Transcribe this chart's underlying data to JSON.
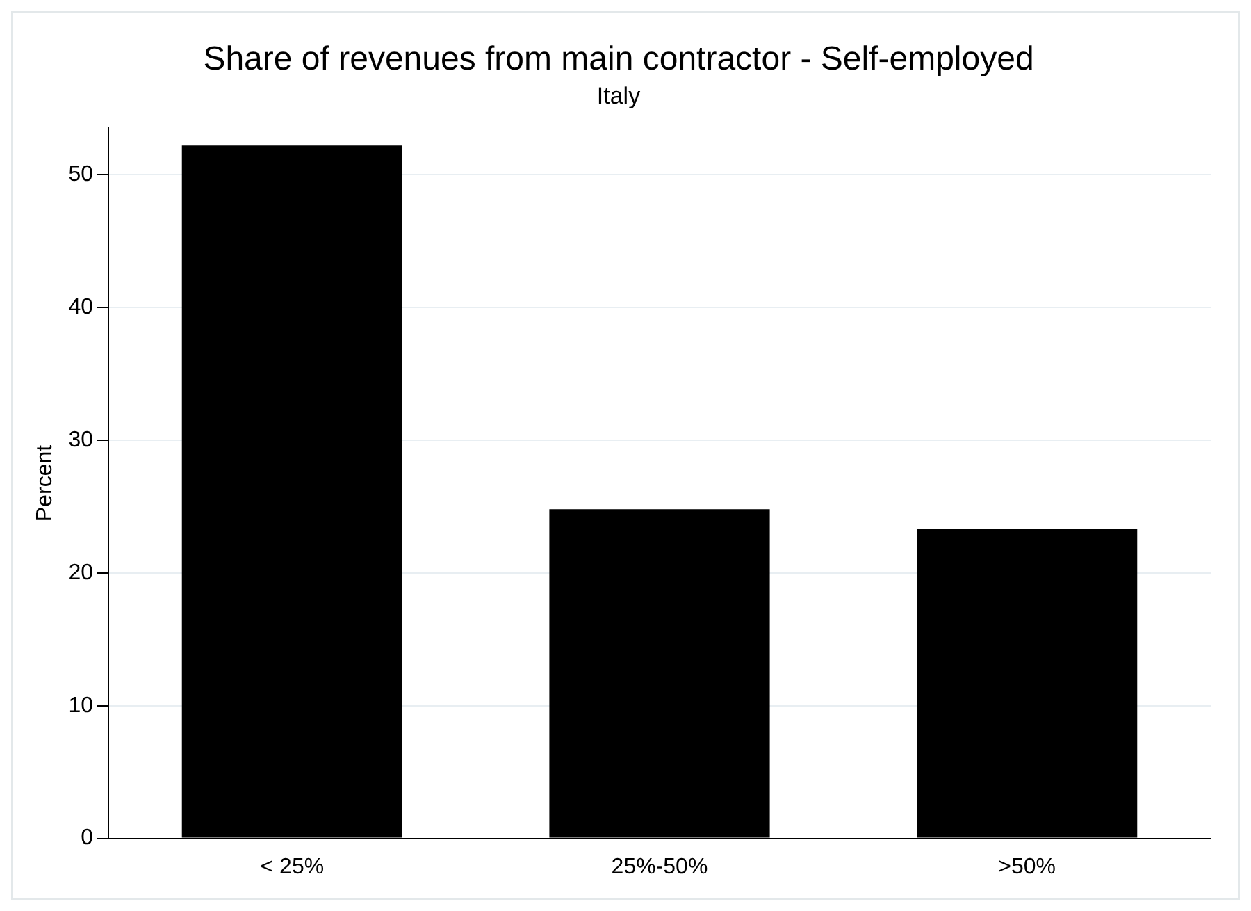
{
  "chart_data": {
    "type": "bar",
    "title": "Share of revenues from main contractor - Self-employed",
    "subtitle": "Italy",
    "ylabel": "Percent",
    "categories": [
      "< 25%",
      "25%-50%",
      ">50%"
    ],
    "values": [
      52.2,
      24.8,
      23.3
    ],
    "color": "#000000",
    "ylim": [
      0,
      53.5
    ],
    "yticks": [
      0,
      10,
      20,
      30,
      40,
      50
    ],
    "grid": "y"
  }
}
